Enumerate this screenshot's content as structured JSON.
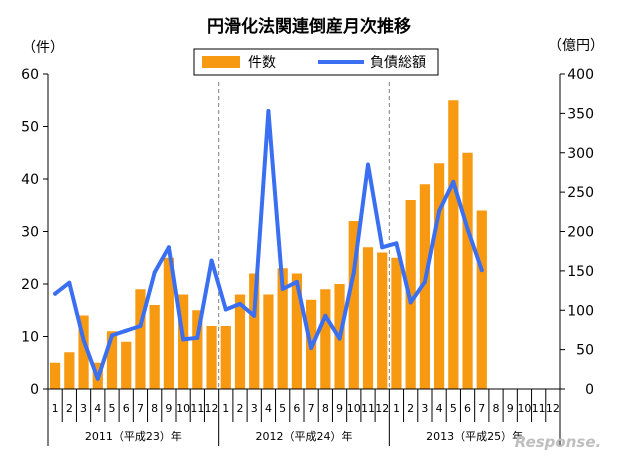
{
  "chart_data": {
    "type": "bar+line",
    "title": "円滑化法関連倒産月次推移",
    "left_unit": "（件）",
    "right_unit": "（億円）",
    "left_ylim": [
      0,
      60
    ],
    "left_ticks": [
      0,
      10,
      20,
      30,
      40,
      50,
      60
    ],
    "right_ylim": [
      0,
      400
    ],
    "right_ticks": [
      0,
      50,
      100,
      150,
      200,
      250,
      300,
      350,
      400
    ],
    "month_labels": [
      "1",
      "2",
      "3",
      "4",
      "5",
      "6",
      "7",
      "8",
      "9",
      "10",
      "11",
      "12",
      "1",
      "2",
      "3",
      "4",
      "5",
      "6",
      "7",
      "8",
      "9",
      "10",
      "11",
      "12",
      "1",
      "2",
      "3",
      "4",
      "5",
      "6",
      "7",
      "8",
      "9",
      "10",
      "11",
      "12"
    ],
    "year_labels": [
      "2011（平成23）年",
      "2012（平成24）年",
      "2013（平成25）年"
    ],
    "series": [
      {
        "name": "件数",
        "type": "bar",
        "axis": "left",
        "color": "#f79a12",
        "values": [
          5,
          7,
          14,
          5,
          11,
          9,
          19,
          16,
          25,
          18,
          15,
          12,
          12,
          18,
          22,
          18,
          23,
          22,
          17,
          19,
          20,
          32,
          27,
          26,
          25,
          36,
          39,
          43,
          55,
          45,
          34,
          null,
          null,
          null,
          null,
          null
        ]
      },
      {
        "name": "負債総額",
        "type": "line",
        "axis": "right",
        "color": "#3a6ff2",
        "values": [
          121,
          135,
          62,
          13,
          68,
          74,
          80,
          148,
          180,
          63,
          65,
          163,
          101,
          108,
          93,
          353,
          127,
          136,
          52,
          93,
          64,
          148,
          285,
          180,
          185,
          110,
          136,
          226,
          263,
          203,
          151,
          null,
          null,
          null,
          null,
          null
        ]
      }
    ],
    "legend_position": "top-center",
    "grid": false
  },
  "watermark": "Response."
}
